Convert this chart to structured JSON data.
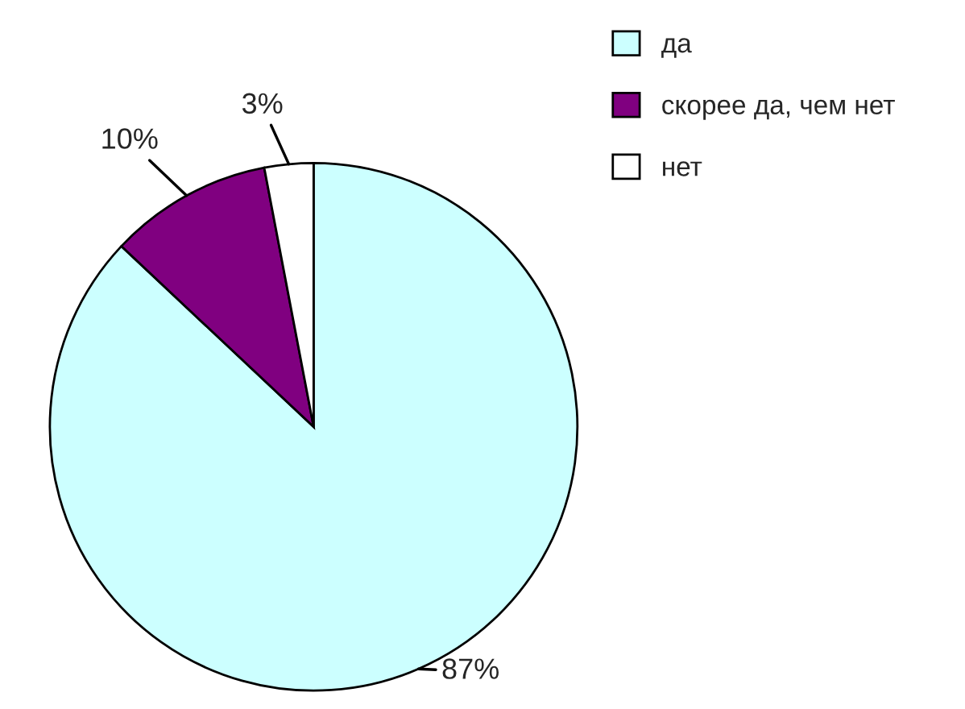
{
  "chart_data": {
    "type": "pie",
    "categories": [
      "да",
      "скорее да, чем нет",
      "нет"
    ],
    "values": [
      87,
      10,
      3
    ],
    "value_labels": [
      "87%",
      "10%",
      "3%"
    ],
    "colors": [
      "#ccffff",
      "#800080",
      "#ffffff"
    ],
    "legend": "top right"
  }
}
